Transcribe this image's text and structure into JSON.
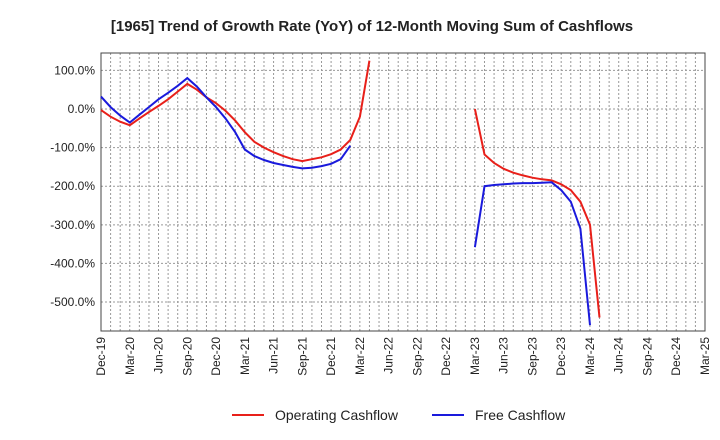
{
  "chart_data": {
    "type": "line",
    "title": "[1965]  Trend of Growth Rate (YoY) of 12-Month Moving Sum of Cashflows",
    "xlabel": "",
    "ylabel": "",
    "y_ticks": [
      "100.0%",
      "0.0%",
      "-100.0%",
      "-200.0%",
      "-300.0%",
      "-400.0%",
      "-500.0%"
    ],
    "y_tick_values": [
      100,
      0,
      -100,
      -200,
      -300,
      -400,
      -500
    ],
    "ylim": [
      -575,
      145
    ],
    "x_ticks": [
      "Dec-19",
      "Mar-20",
      "Jun-20",
      "Sep-20",
      "Dec-20",
      "Mar-21",
      "Jun-21",
      "Sep-21",
      "Dec-21",
      "Mar-22",
      "Jun-22",
      "Sep-22",
      "Dec-22",
      "Mar-23",
      "Jun-23",
      "Sep-23",
      "Dec-23",
      "Mar-24",
      "Jun-24",
      "Sep-24",
      "Dec-24",
      "Mar-25"
    ],
    "x_months": [
      "2019-12",
      "2020-01",
      "2020-02",
      "2020-03",
      "2020-04",
      "2020-05",
      "2020-06",
      "2020-07",
      "2020-08",
      "2020-09",
      "2020-10",
      "2020-11",
      "2020-12",
      "2021-01",
      "2021-02",
      "2021-03",
      "2021-04",
      "2021-05",
      "2021-06",
      "2021-07",
      "2021-08",
      "2021-09",
      "2021-10",
      "2021-11",
      "2021-12",
      "2022-01",
      "2022-02",
      "2022-03",
      "2022-04",
      "2022-05",
      "2022-06",
      "2022-07",
      "2022-08",
      "2022-09",
      "2022-10",
      "2022-11",
      "2022-12",
      "2023-01",
      "2023-02",
      "2023-03",
      "2023-04",
      "2023-05",
      "2023-06",
      "2023-07",
      "2023-08",
      "2023-09",
      "2023-10",
      "2023-11",
      "2023-12",
      "2024-01",
      "2024-02",
      "2024-03",
      "2024-04",
      "2024-05",
      "2024-06",
      "2024-07",
      "2024-08",
      "2024-09",
      "2024-10",
      "2024-11",
      "2024-12",
      "2025-01",
      "2025-02",
      "2025-03"
    ],
    "grid": true,
    "legend_position": "bottom",
    "series": [
      {
        "name": "Operating Cashflow",
        "color": "#e8201a",
        "values": [
          -3,
          -20,
          -33,
          -42,
          -25,
          -8,
          8,
          25,
          45,
          65,
          50,
          30,
          15,
          -5,
          -30,
          -60,
          -85,
          -100,
          -112,
          -122,
          -130,
          -135,
          -130,
          -125,
          -117,
          -105,
          -80,
          -20,
          125,
          null,
          null,
          null,
          null,
          null,
          null,
          null,
          null,
          null,
          null,
          0,
          -118,
          -140,
          -155,
          -165,
          -172,
          -178,
          -182,
          -185,
          -195,
          -210,
          -240,
          -300,
          -540,
          null,
          null,
          null,
          null,
          null,
          null,
          null,
          null,
          null,
          null,
          null
        ]
      },
      {
        "name": "Free Cashflow",
        "color": "#1a1adc",
        "values": [
          32,
          5,
          -17,
          -35,
          -15,
          5,
          25,
          42,
          60,
          80,
          58,
          30,
          5,
          -25,
          -60,
          -105,
          -122,
          -132,
          -140,
          -145,
          -150,
          -154,
          -152,
          -148,
          -142,
          -130,
          -95,
          null,
          null,
          null,
          null,
          null,
          null,
          null,
          null,
          null,
          null,
          null,
          null,
          -358,
          -200,
          -197,
          -195,
          -193,
          -192,
          -192,
          -191,
          -190,
          -210,
          -240,
          -310,
          -560,
          null,
          null,
          null,
          null,
          null,
          null,
          null,
          null,
          null,
          null,
          null,
          null
        ]
      }
    ]
  }
}
